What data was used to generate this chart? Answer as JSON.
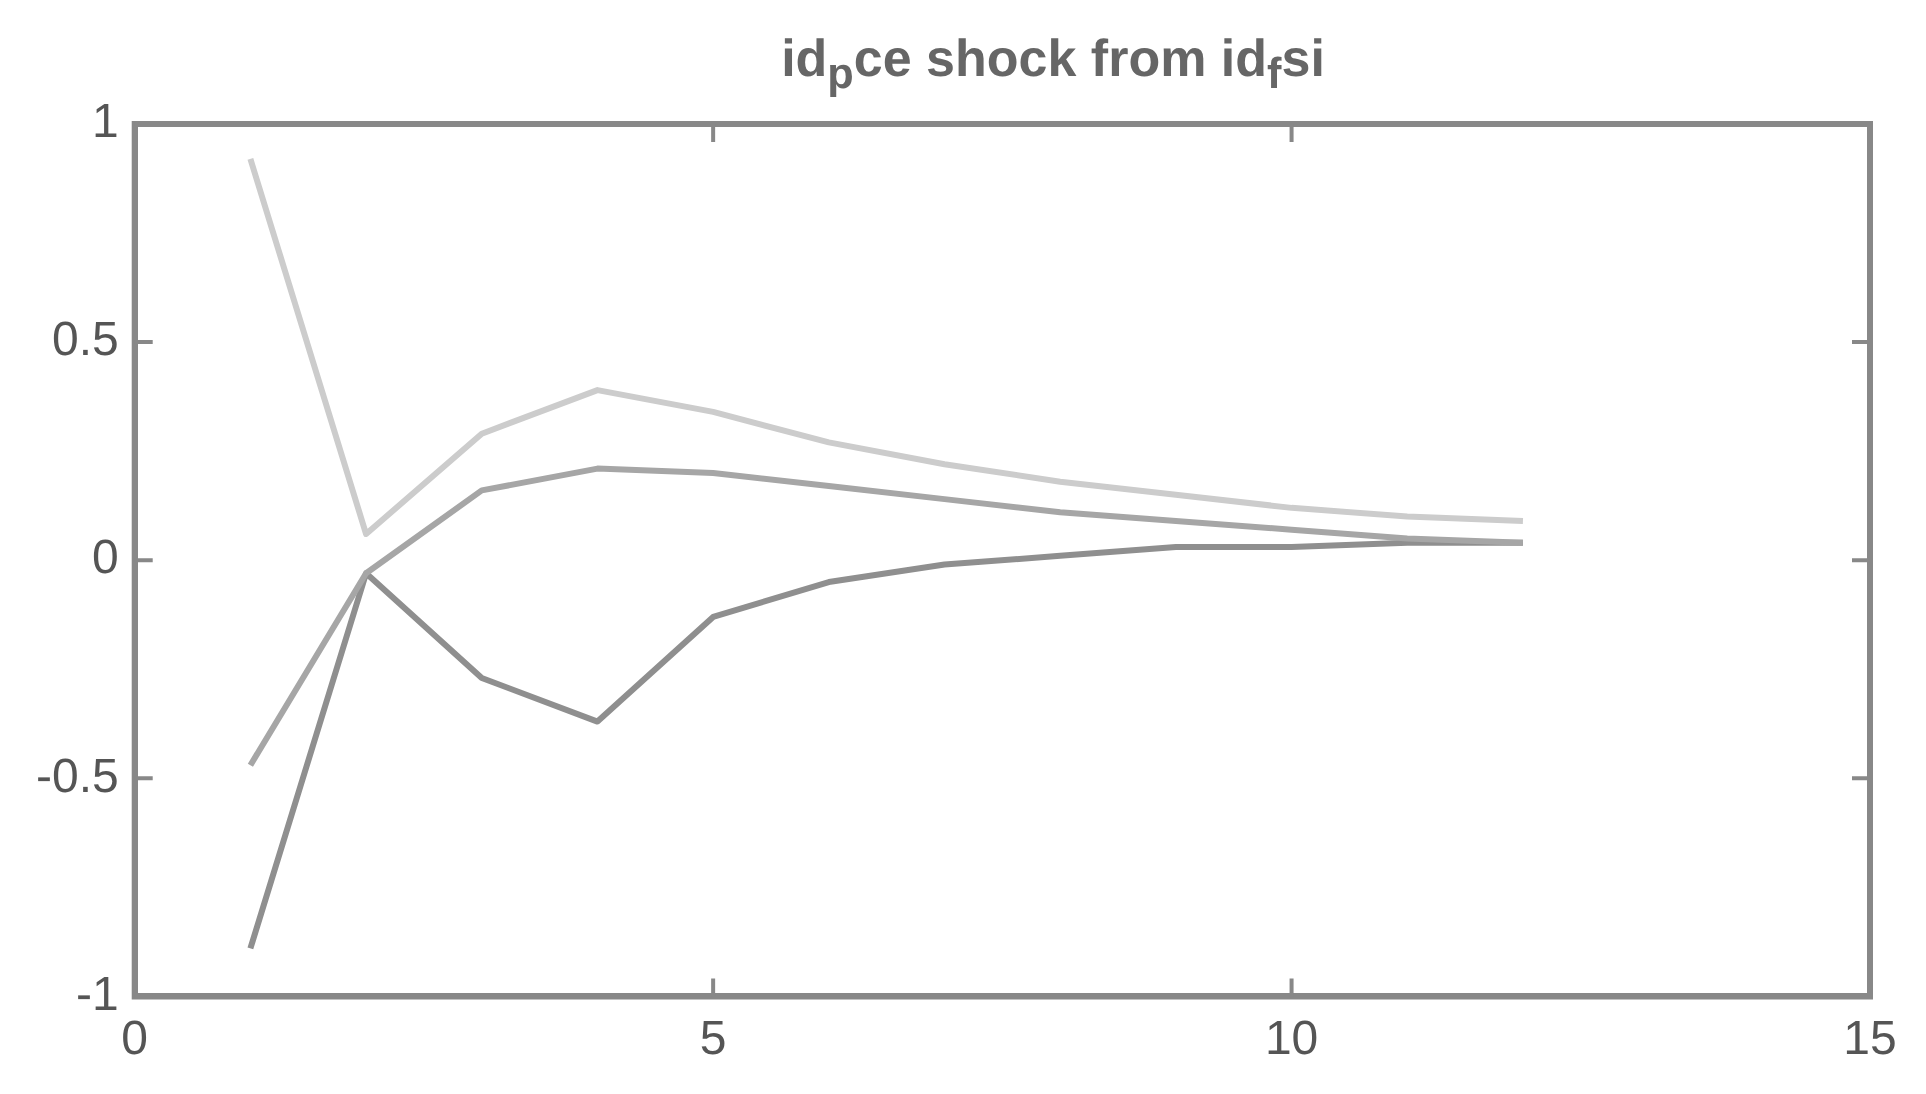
{
  "chart_data": {
    "type": "line",
    "title": "id$_{p}$ce shock from id$_{f}$si",
    "x": [
      1,
      2,
      3,
      4,
      5,
      6,
      7,
      8,
      9,
      10,
      11,
      12
    ],
    "series": [
      {
        "color": "#cccccc",
        "values": [
          0.92,
          0.06,
          0.29,
          0.39,
          0.34,
          0.27,
          0.22,
          0.18,
          0.15,
          0.12,
          0.1,
          0.09
        ]
      },
      {
        "color": "#a6a6a6",
        "values": [
          -0.47,
          -0.03,
          0.16,
          0.21,
          0.2,
          0.17,
          0.14,
          0.11,
          0.09,
          0.07,
          0.05,
          0.04
        ]
      },
      {
        "color": "#8f8f8f",
        "values": [
          -0.89,
          -0.03,
          -0.27,
          -0.37,
          -0.13,
          -0.05,
          -0.01,
          0.01,
          0.03,
          0.03,
          0.04,
          0.04
        ]
      }
    ],
    "xlim": [
      0,
      15
    ],
    "xticks": [
      0,
      5,
      10,
      15
    ],
    "ylim": [
      -1,
      1
    ],
    "yticks": [
      -1,
      -0.5,
      0,
      0.5,
      1
    ]
  }
}
